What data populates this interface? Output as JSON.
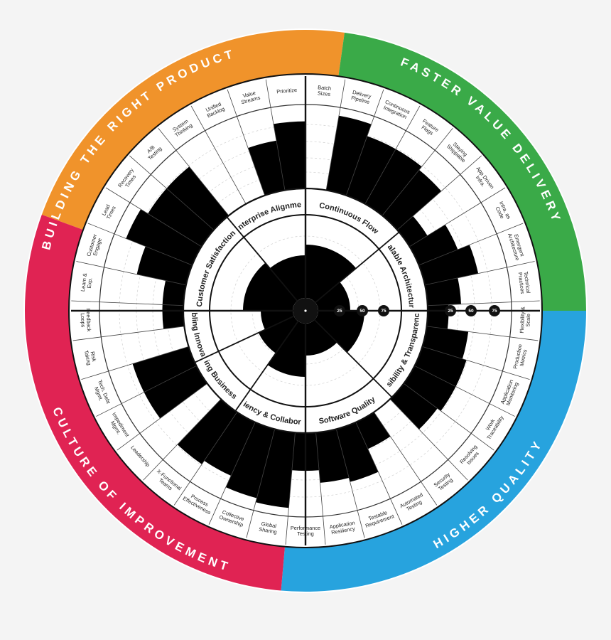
{
  "colors": {
    "orange": "#f0932b",
    "orange_light": "#f6c08a",
    "green": "#3aaa48",
    "green_light": "#8fd18c",
    "blue": "#27a3de",
    "blue_light": "#7cc6ea",
    "red": "#e02353",
    "red_light": "#ec7592"
  },
  "quadrants": [
    {
      "key": "building",
      "title": "BUILDING THE RIGHT PRODUCT",
      "color": "orange"
    },
    {
      "key": "faster",
      "title": "FASTER VALUE DELIVERY",
      "color": "green"
    },
    {
      "key": "quality",
      "title": "HIGHER QUALITY",
      "color": "blue"
    },
    {
      "key": "culture",
      "title": "CULTURE OF IMPROVEMENT",
      "color": "red"
    }
  ],
  "ticks": [
    "25",
    "50",
    "75"
  ],
  "chart_data": {
    "type": "radial-bar",
    "scale": [
      0,
      100
    ],
    "middle_ring": [
      {
        "label": "Customer Satisfaction",
        "quadrant": "building",
        "value": 70,
        "shade": "dark"
      },
      {
        "label": "Enterprise Alignment",
        "quadrant": "building",
        "value": 60,
        "shade": "light"
      },
      {
        "label": "Continuous Flow",
        "quadrant": "faster",
        "value": 75,
        "shade": "dark"
      },
      {
        "label": "Scalable Architectures",
        "quadrant": "faster",
        "value": 45,
        "shade": "light"
      },
      {
        "label": "Visibility & Transparency",
        "quadrant": "quality",
        "value": 65,
        "shade": "dark"
      },
      {
        "label": "Software Quality",
        "quadrant": "quality",
        "value": 45,
        "shade": "light"
      },
      {
        "label": "Efficiency & Collaboration",
        "quadrant": "culture",
        "value": 75,
        "shade": "dark"
      },
      {
        "label": "Enabling Business Agility",
        "quadrant": "culture",
        "value": 55,
        "shade": "light"
      },
      {
        "label": "Enabling Innovation",
        "quadrant": "culture",
        "value": 45,
        "shade": "dark"
      }
    ],
    "outer_ring": [
      {
        "label": "Batch Sizes",
        "quadrant": "faster",
        "value": 0,
        "shade": "dark"
      },
      {
        "label": "Delivery Pipeline",
        "quadrant": "faster",
        "value": 90,
        "shade": "dark"
      },
      {
        "label": "Continuous Integration",
        "quadrant": "faster",
        "value": 75,
        "shade": "dark"
      },
      {
        "label": "Feature Flags",
        "quadrant": "faster",
        "value": 75,
        "shade": "dark"
      },
      {
        "label": "Staying Shippable",
        "quadrant": "faster",
        "value": 70,
        "shade": "dark"
      },
      {
        "label": "App Driven Infra.",
        "quadrant": "faster",
        "value": 25,
        "shade": "light"
      },
      {
        "label": "Infra. as Code",
        "quadrant": "faster",
        "value": 50,
        "shade": "light"
      },
      {
        "label": "Emergent Architecture",
        "quadrant": "faster",
        "value": 65,
        "shade": "light"
      },
      {
        "label": "Technical Practices",
        "quadrant": "faster",
        "value": 40,
        "shade": "light"
      },
      {
        "label": "Flexibility & Scale",
        "quadrant": "faster",
        "value": 25,
        "shade": "light"
      },
      {
        "label": "Production Metrics",
        "quadrant": "quality",
        "value": 50,
        "shade": "dark"
      },
      {
        "label": "Application Monitoring",
        "quadrant": "quality",
        "value": 55,
        "shade": "dark"
      },
      {
        "label": "Work Traceability",
        "quadrant": "quality",
        "value": 55,
        "shade": "dark"
      },
      {
        "label": "Resolving Issues",
        "quadrant": "quality",
        "value": 50,
        "shade": "dark"
      },
      {
        "label": "Security Testing",
        "quadrant": "quality",
        "value": 0,
        "shade": "light"
      },
      {
        "label": "Automated Testing",
        "quadrant": "quality",
        "value": 35,
        "shade": "light"
      },
      {
        "label": "Testable Requirement",
        "quadrant": "quality",
        "value": 65,
        "shade": "light"
      },
      {
        "label": "Application Resiliency",
        "quadrant": "quality",
        "value": 60,
        "shade": "light"
      },
      {
        "label": "Performance Testing",
        "quadrant": "quality",
        "value": 45,
        "shade": "light"
      },
      {
        "label": "Global Sharing",
        "quadrant": "culture",
        "value": 90,
        "shade": "dark"
      },
      {
        "label": "Collective Ownership",
        "quadrant": "culture",
        "value": 85,
        "shade": "dark"
      },
      {
        "label": "Process Effectiveness",
        "quadrant": "culture",
        "value": 70,
        "shade": "dark"
      },
      {
        "label": "X-Functional Teams",
        "quadrant": "culture",
        "value": 75,
        "shade": "dark"
      },
      {
        "label": "Leadership",
        "quadrant": "culture",
        "value": 0,
        "shade": "dark"
      },
      {
        "label": "Impediment Mgmt.",
        "quadrant": "culture",
        "value": 70,
        "shade": "light"
      },
      {
        "label": "Tech. Debt Mgmt.",
        "quadrant": "culture",
        "value": 70,
        "shade": "light"
      },
      {
        "label": "Risk Taking",
        "quadrant": "culture",
        "value": 0,
        "shade": "light"
      },
      {
        "label": "Feedback Loops",
        "quadrant": "culture",
        "value": 25,
        "shade": "dark"
      },
      {
        "label": "Learn & Exp.",
        "quadrant": "culture",
        "value": 25,
        "shade": "dark"
      },
      {
        "label": "Customer Engage",
        "quadrant": "building",
        "value": 60,
        "shade": "dark"
      },
      {
        "label": "Lead Times",
        "quadrant": "building",
        "value": 85,
        "shade": "dark"
      },
      {
        "label": "Recovery Times",
        "quadrant": "building",
        "value": 75,
        "shade": "dark"
      },
      {
        "label": "A/B Testing",
        "quadrant": "building",
        "value": 75,
        "shade": "dark"
      },
      {
        "label": "System Thinking",
        "quadrant": "building",
        "value": 0,
        "shade": "dark"
      },
      {
        "label": "Unified Backlog",
        "quadrant": "building",
        "value": 0,
        "shade": "light"
      },
      {
        "label": "Value Streams",
        "quadrant": "building",
        "value": 60,
        "shade": "light"
      },
      {
        "label": "Prioritize",
        "quadrant": "building",
        "value": 80,
        "shade": "light"
      }
    ]
  }
}
